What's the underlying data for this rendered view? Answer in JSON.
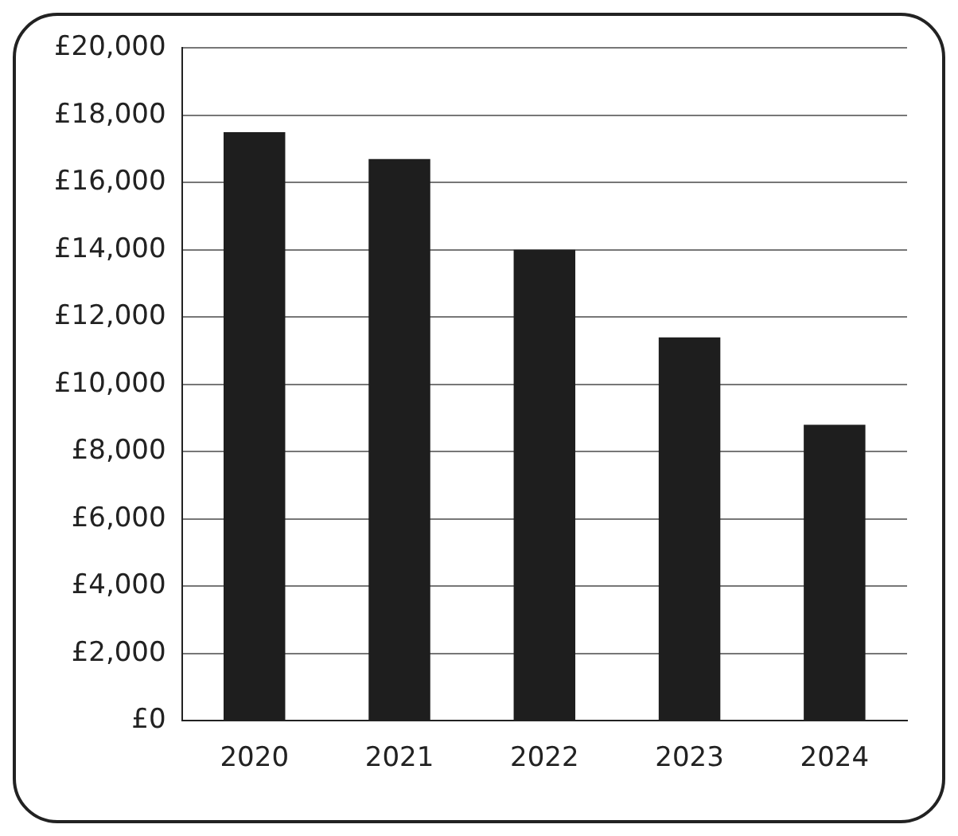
{
  "chart_data": {
    "type": "bar",
    "categories": [
      "2020",
      "2021",
      "2022",
      "2023",
      "2024"
    ],
    "values": [
      17500,
      16700,
      14000,
      11400,
      8800
    ],
    "color": "#1e1e1e",
    "ylim": [
      0,
      20000
    ],
    "yticks": [
      {
        "value": 0,
        "label": "£0"
      },
      {
        "value": 2000,
        "label": "£2,000"
      },
      {
        "value": 4000,
        "label": "£4,000"
      },
      {
        "value": 6000,
        "label": "£6,000"
      },
      {
        "value": 8000,
        "label": "£8,000"
      },
      {
        "value": 10000,
        "label": "£10,000"
      },
      {
        "value": 12000,
        "label": "£12,000"
      },
      {
        "value": 14000,
        "label": "£14,000"
      },
      {
        "value": 16000,
        "label": "£16,000"
      },
      {
        "value": 18000,
        "label": "£18,000"
      },
      {
        "value": 20000,
        "label": "£20,000"
      }
    ],
    "grid": "y"
  }
}
